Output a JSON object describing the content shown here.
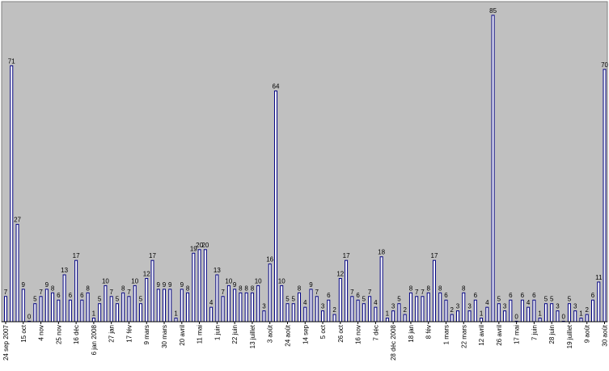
{
  "chart_data": {
    "type": "bar",
    "title": "",
    "xlabel": "",
    "ylabel": "",
    "ylim": [
      0,
      87
    ],
    "grid": false,
    "legend": "none",
    "colors": {
      "plot_background": "#c0c0c0",
      "bar_fill": "#ffffff",
      "bar_stroke": "#000080",
      "frame": "#808080"
    },
    "values": [
      7,
      71,
      27,
      9,
      0,
      5,
      7,
      9,
      8,
      6,
      13,
      6,
      17,
      6,
      8,
      1,
      5,
      10,
      7,
      5,
      8,
      7,
      10,
      5,
      12,
      17,
      9,
      9,
      9,
      1,
      9,
      8,
      19,
      20,
      20,
      4,
      13,
      7,
      10,
      9,
      8,
      8,
      8,
      10,
      3,
      16,
      64,
      10,
      5,
      5,
      8,
      4,
      9,
      7,
      3,
      6,
      2,
      12,
      17,
      7,
      6,
      5,
      7,
      4,
      18,
      1,
      3,
      5,
      2,
      8,
      7,
      7,
      8,
      17,
      8,
      6,
      2,
      3,
      8,
      3,
      6,
      1,
      4,
      85,
      5,
      3,
      6,
      0,
      6,
      4,
      6,
      1,
      5,
      5,
      3,
      0,
      5,
      3,
      1,
      2,
      6,
      11,
      70
    ],
    "x_ticks": [
      {
        "index": 0,
        "label": "24 sep 2007"
      },
      {
        "index": 3,
        "label": "15 oct"
      },
      {
        "index": 6,
        "label": "4 nov"
      },
      {
        "index": 9,
        "label": "25 nov"
      },
      {
        "index": 12,
        "label": "16 déc"
      },
      {
        "index": 15,
        "label": "6 jan 2008"
      },
      {
        "index": 18,
        "label": "27 jan"
      },
      {
        "index": 21,
        "label": "17 fév"
      },
      {
        "index": 24,
        "label": "9 mars"
      },
      {
        "index": 27,
        "label": "30 mars"
      },
      {
        "index": 30,
        "label": "20 avril"
      },
      {
        "index": 33,
        "label": "11 mai"
      },
      {
        "index": 36,
        "label": "1 juin"
      },
      {
        "index": 39,
        "label": "22 juin"
      },
      {
        "index": 42,
        "label": "13 juillet"
      },
      {
        "index": 45,
        "label": "3 août"
      },
      {
        "index": 48,
        "label": "24 août"
      },
      {
        "index": 51,
        "label": "14 sep"
      },
      {
        "index": 54,
        "label": "5 oct"
      },
      {
        "index": 57,
        "label": "26 oct"
      },
      {
        "index": 60,
        "label": "16 nov"
      },
      {
        "index": 63,
        "label": "7 déc"
      },
      {
        "index": 66,
        "label": "28 déc 2008"
      },
      {
        "index": 69,
        "label": "18 jan"
      },
      {
        "index": 72,
        "label": "8 fév"
      },
      {
        "index": 75,
        "label": "1 mars"
      },
      {
        "index": 78,
        "label": "22 mars"
      },
      {
        "index": 81,
        "label": "12 avril"
      },
      {
        "index": 84,
        "label": "26 avril"
      },
      {
        "index": 87,
        "label": "17 mai"
      },
      {
        "index": 90,
        "label": "7 juin"
      },
      {
        "index": 93,
        "label": "28 juin"
      },
      {
        "index": 96,
        "label": "19 juillet"
      },
      {
        "index": 99,
        "label": "9 août"
      },
      {
        "index": 102,
        "label": "30 août"
      }
    ]
  }
}
